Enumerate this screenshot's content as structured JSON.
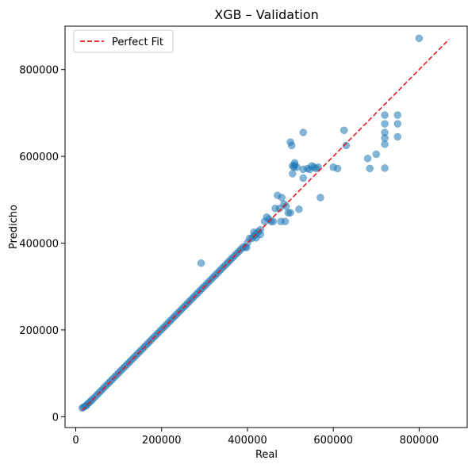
{
  "chart_data": {
    "type": "scatter",
    "title": "XGB – Validation",
    "xlabel": "Real",
    "ylabel": "Predicho",
    "xlim": [
      -25000,
      912000
    ],
    "ylim": [
      -25000,
      900000
    ],
    "xticks": [
      0,
      200000,
      400000,
      600000,
      800000
    ],
    "yticks": [
      0,
      200000,
      400000,
      600000,
      800000
    ],
    "xtick_labels": [
      "0",
      "200000",
      "400000",
      "600000",
      "800000"
    ],
    "ytick_labels": [
      "0",
      "200000",
      "400000",
      "600000",
      "800000"
    ],
    "grid": false,
    "legend_position": "top-left",
    "legend": [
      "Perfect Fit"
    ],
    "reference_line": {
      "name": "Perfect Fit",
      "from": [
        15000,
        15000
      ],
      "to": [
        870000,
        870000
      ],
      "color": "#e41a1c",
      "style": "dashed"
    },
    "series": [
      {
        "color": "#1f77b4",
        "points": [
          [
            15000,
            20000
          ],
          [
            18000,
            22000
          ],
          [
            22000,
            24000
          ],
          [
            25000,
            26000
          ],
          [
            28000,
            30000
          ],
          [
            32000,
            33000
          ],
          [
            36000,
            37000
          ],
          [
            40000,
            41000
          ],
          [
            45000,
            46000
          ],
          [
            50000,
            51000
          ],
          [
            55000,
            56000
          ],
          [
            60000,
            61000
          ],
          [
            65000,
            66000
          ],
          [
            70000,
            71000
          ],
          [
            75000,
            76000
          ],
          [
            80000,
            81000
          ],
          [
            85000,
            86000
          ],
          [
            90000,
            91000
          ],
          [
            95000,
            96000
          ],
          [
            100000,
            101000
          ],
          [
            105000,
            106000
          ],
          [
            110000,
            111000
          ],
          [
            115000,
            116000
          ],
          [
            120000,
            121000
          ],
          [
            125000,
            126000
          ],
          [
            130000,
            131000
          ],
          [
            135000,
            136000
          ],
          [
            140000,
            141000
          ],
          [
            145000,
            146000
          ],
          [
            150000,
            151000
          ],
          [
            155000,
            156000
          ],
          [
            160000,
            161000
          ],
          [
            165000,
            166000
          ],
          [
            170000,
            171000
          ],
          [
            175000,
            176000
          ],
          [
            180000,
            181000
          ],
          [
            185000,
            186000
          ],
          [
            190000,
            191000
          ],
          [
            195000,
            196000
          ],
          [
            200000,
            201000
          ],
          [
            205000,
            206000
          ],
          [
            210000,
            211000
          ],
          [
            215000,
            216000
          ],
          [
            220000,
            221000
          ],
          [
            225000,
            226000
          ],
          [
            230000,
            231000
          ],
          [
            235000,
            236000
          ],
          [
            240000,
            241000
          ],
          [
            245000,
            246000
          ],
          [
            250000,
            251000
          ],
          [
            255000,
            256000
          ],
          [
            260000,
            261000
          ],
          [
            265000,
            266000
          ],
          [
            270000,
            271000
          ],
          [
            275000,
            276000
          ],
          [
            280000,
            281000
          ],
          [
            285000,
            286000
          ],
          [
            290000,
            291000
          ],
          [
            295000,
            296000
          ],
          [
            300000,
            301000
          ],
          [
            305000,
            306000
          ],
          [
            310000,
            311000
          ],
          [
            315000,
            316000
          ],
          [
            320000,
            321000
          ],
          [
            325000,
            326000
          ],
          [
            330000,
            331000
          ],
          [
            335000,
            336000
          ],
          [
            340000,
            341000
          ],
          [
            345000,
            346000
          ],
          [
            350000,
            351000
          ],
          [
            355000,
            356000
          ],
          [
            360000,
            361000
          ],
          [
            365000,
            366000
          ],
          [
            370000,
            371000
          ],
          [
            375000,
            376000
          ],
          [
            380000,
            381000
          ],
          [
            385000,
            386000
          ],
          [
            390000,
            391000
          ],
          [
            395000,
            391000
          ],
          [
            400000,
            401000
          ],
          [
            405000,
            411000
          ],
          [
            410000,
            411000
          ],
          [
            415000,
            416000
          ],
          [
            420000,
            421000
          ],
          [
            425000,
            426000
          ],
          [
            430000,
            431000
          ],
          [
            292000,
            354000
          ],
          [
            398000,
            390000
          ],
          [
            415000,
            425000
          ],
          [
            420000,
            412000
          ],
          [
            430000,
            420000
          ],
          [
            440000,
            450000
          ],
          [
            445000,
            460000
          ],
          [
            450000,
            455000
          ],
          [
            455000,
            450000
          ],
          [
            460000,
            450000
          ],
          [
            465000,
            480000
          ],
          [
            470000,
            510000
          ],
          [
            475000,
            480000
          ],
          [
            478000,
            450000
          ],
          [
            480000,
            505000
          ],
          [
            485000,
            490000
          ],
          [
            488000,
            450000
          ],
          [
            490000,
            485000
          ],
          [
            495000,
            470000
          ],
          [
            500000,
            470000
          ],
          [
            503000,
            625000
          ],
          [
            505000,
            578000
          ],
          [
            508000,
            575000
          ],
          [
            510000,
            585000
          ],
          [
            515000,
            575000
          ],
          [
            520000,
            478000
          ],
          [
            530000,
            570000
          ],
          [
            540000,
            572000
          ],
          [
            545000,
            570000
          ],
          [
            550000,
            578000
          ],
          [
            555000,
            575000
          ],
          [
            560000,
            572000
          ],
          [
            565000,
            575000
          ],
          [
            570000,
            505000
          ],
          [
            500000,
            633000
          ],
          [
            505000,
            560000
          ],
          [
            510000,
            580000
          ],
          [
            530000,
            655000
          ],
          [
            530000,
            550000
          ],
          [
            600000,
            575000
          ],
          [
            610000,
            572000
          ],
          [
            625000,
            660000
          ],
          [
            630000,
            625000
          ],
          [
            680000,
            595000
          ],
          [
            685000,
            572000
          ],
          [
            700000,
            605000
          ],
          [
            720000,
            695000
          ],
          [
            720000,
            675000
          ],
          [
            720000,
            655000
          ],
          [
            720000,
            642000
          ],
          [
            720000,
            628000
          ],
          [
            720000,
            573000
          ],
          [
            750000,
            695000
          ],
          [
            750000,
            675000
          ],
          [
            750000,
            645000
          ],
          [
            800000,
            872000
          ]
        ]
      }
    ]
  }
}
